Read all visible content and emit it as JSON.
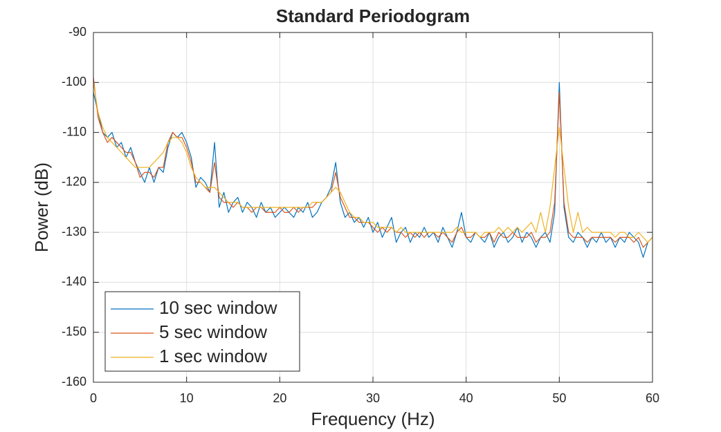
{
  "chart_data": {
    "type": "line",
    "title": "Standard Periodogram",
    "x_label": "Frequency (Hz)",
    "y_label": "Power (dB)",
    "x": [
      0,
      0.5,
      1,
      1.5,
      2,
      2.5,
      3,
      3.5,
      4,
      4.5,
      5,
      5.5,
      6,
      6.5,
      7,
      7.5,
      8,
      8.5,
      9,
      9.5,
      10,
      10.5,
      11,
      11.5,
      12,
      12.5,
      13,
      13.5,
      14,
      14.5,
      15,
      15.5,
      16,
      16.5,
      17,
      17.5,
      18,
      18.5,
      19,
      19.5,
      20,
      20.5,
      21,
      21.5,
      22,
      22.5,
      23,
      23.5,
      24,
      24.5,
      25,
      25.5,
      26,
      26.5,
      27,
      27.5,
      28,
      28.5,
      29,
      29.5,
      30,
      30.5,
      31,
      31.5,
      32,
      32.5,
      33,
      33.5,
      34,
      34.5,
      35,
      35.5,
      36,
      36.5,
      37,
      37.5,
      38,
      38.5,
      39,
      39.5,
      40,
      40.5,
      41,
      41.5,
      42,
      42.5,
      43,
      43.5,
      44,
      44.5,
      45,
      45.5,
      46,
      46.5,
      47,
      47.5,
      48,
      48.5,
      49,
      49.5,
      50,
      50.5,
      51,
      51.5,
      52,
      52.5,
      53,
      53.5,
      54,
      54.5,
      55,
      55.5,
      56,
      56.5,
      57,
      57.5,
      58,
      58.5,
      59,
      59.5,
      60
    ],
    "series": [
      {
        "name": "10 sec window",
        "color": "#0072BD",
        "values": [
          -102,
          -106,
          -110,
          -111,
          -110,
          -113,
          -112,
          -115,
          -113,
          -116,
          -118,
          -120,
          -117,
          -120,
          -117,
          -118,
          -113,
          -110,
          -111,
          -110,
          -112,
          -115,
          -121,
          -119,
          -120,
          -122,
          -112,
          -125,
          -122,
          -126,
          -124,
          -123,
          -126,
          -124,
          -125,
          -127,
          -124,
          -126,
          -125,
          -127,
          -126,
          -125,
          -126,
          -127,
          -125,
          -126,
          -124,
          -127,
          -126,
          -124,
          -123,
          -121,
          -116,
          -124,
          -127,
          -126,
          -128,
          -127,
          -129,
          -127,
          -130,
          -128,
          -131,
          -129,
          -127,
          -132,
          -130,
          -129,
          -132,
          -130,
          -131,
          -129,
          -131,
          -130,
          -132,
          -129,
          -131,
          -133,
          -130,
          -126,
          -131,
          -132,
          -130,
          -131,
          -132,
          -130,
          -133,
          -131,
          -130,
          -132,
          -131,
          -129,
          -132,
          -130,
          -131,
          -133,
          -131,
          -130,
          -132,
          -126,
          -100,
          -125,
          -131,
          -132,
          -130,
          -131,
          -133,
          -131,
          -132,
          -130,
          -132,
          -131,
          -133,
          -131,
          -132,
          -130,
          -131,
          -132,
          -135,
          -132,
          -131
        ]
      },
      {
        "name": "5 sec window",
        "color": "#D95319",
        "values": [
          -99,
          -107,
          -110,
          -112,
          -111,
          -112,
          -113,
          -114,
          -114,
          -116,
          -119,
          -118,
          -118,
          -119,
          -117,
          -117,
          -112,
          -110,
          -111,
          -111,
          -113,
          -116,
          -120,
          -120,
          -121,
          -122,
          -116,
          -123,
          -124,
          -124,
          -125,
          -124,
          -125,
          -125,
          -126,
          -125,
          -125,
          -126,
          -126,
          -126,
          -125,
          -126,
          -126,
          -125,
          -126,
          -125,
          -125,
          -125,
          -124,
          -124,
          -123,
          -122,
          -118,
          -123,
          -125,
          -127,
          -127,
          -128,
          -128,
          -128,
          -129,
          -130,
          -129,
          -130,
          -129,
          -130,
          -130,
          -131,
          -130,
          -131,
          -130,
          -131,
          -130,
          -130,
          -131,
          -130,
          -131,
          -132,
          -130,
          -129,
          -131,
          -131,
          -130,
          -131,
          -131,
          -130,
          -132,
          -130,
          -131,
          -131,
          -130,
          -131,
          -131,
          -131,
          -130,
          -132,
          -131,
          -131,
          -130,
          -124,
          -102,
          -124,
          -130,
          -131,
          -131,
          -131,
          -132,
          -131,
          -131,
          -131,
          -131,
          -131,
          -132,
          -131,
          -131,
          -131,
          -132,
          -131,
          -133,
          -132,
          -131
        ]
      },
      {
        "name": "1 sec window",
        "color": "#EDB120",
        "values": [
          -100,
          -106,
          -109,
          -111,
          -112,
          -113,
          -114,
          -115,
          -116,
          -117,
          -117,
          -117,
          -117,
          -116,
          -115,
          -114,
          -112,
          -111,
          -111,
          -112,
          -114,
          -117,
          -119,
          -120,
          -121,
          -121,
          -121,
          -122,
          -123,
          -124,
          -124,
          -124,
          -125,
          -125,
          -125,
          -125,
          -125,
          -125,
          -125,
          -125,
          -125,
          -125,
          -125,
          -125,
          -125,
          -125,
          -125,
          -124,
          -124,
          -124,
          -123,
          -122,
          -121,
          -122,
          -124,
          -126,
          -127,
          -127,
          -128,
          -128,
          -128,
          -129,
          -129,
          -129,
          -129,
          -130,
          -129,
          -130,
          -130,
          -130,
          -130,
          -130,
          -130,
          -130,
          -130,
          -130,
          -130,
          -130,
          -129,
          -130,
          -130,
          -130,
          -130,
          -131,
          -130,
          -130,
          -130,
          -129,
          -130,
          -129,
          -130,
          -129,
          -130,
          -129,
          -128,
          -130,
          -126,
          -130,
          -125,
          -117,
          -109,
          -117,
          -125,
          -130,
          -126,
          -130,
          -129,
          -130,
          -130,
          -130,
          -130,
          -130,
          -131,
          -130,
          -130,
          -131,
          -131,
          -130,
          -131,
          -132,
          -131
        ]
      }
    ],
    "xlim": [
      0,
      60
    ],
    "xticks": [
      0,
      10,
      20,
      30,
      40,
      50,
      60
    ],
    "ylim": [
      -160,
      -90
    ],
    "yticks": [
      -160,
      -150,
      -140,
      -130,
      -120,
      -110,
      -100,
      -90
    ],
    "grid": true,
    "legend": "lower-left"
  }
}
